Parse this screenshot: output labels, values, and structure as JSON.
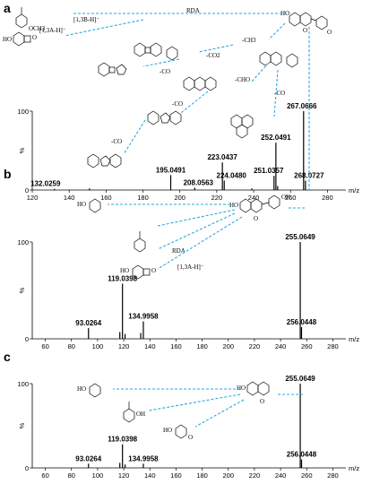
{
  "panels": {
    "a": "a",
    "b": "b",
    "c": "c"
  },
  "units": {
    "y_label": "%",
    "x_label": "m/z"
  },
  "annotations": {
    "rda": "RDA",
    "b_ion": "[1,3B-H]⁻",
    "a_ion": "[1,3A-H]⁻",
    "minus_ch3": "-CH3",
    "minus_co2": "-CO2",
    "minus_cho": "-CHO",
    "minus_co": "-CO",
    "rda_b": "RDA",
    "a_ion_b": "[1,3A-H]⁻"
  },
  "chart_data": [
    {
      "type": "bar",
      "panel": "a",
      "xlabel": "m/z",
      "ylabel": "%",
      "xlim": [
        120,
        290
      ],
      "ylim": [
        0,
        100
      ],
      "xticks": [
        120,
        140,
        160,
        180,
        200,
        220,
        240,
        260,
        280
      ],
      "yticks": [
        0,
        100
      ],
      "peaks": [
        {
          "x": 132.0259,
          "y": 1.5,
          "label": "132.0259"
        },
        {
          "x": 151.0,
          "y": 2,
          "label": ""
        },
        {
          "x": 195.0491,
          "y": 19,
          "label": "195.0491"
        },
        {
          "x": 208.0563,
          "y": 3,
          "label": "208.0563"
        },
        {
          "x": 223.0437,
          "y": 35,
          "label": "223.0437"
        },
        {
          "x": 224.048,
          "y": 12,
          "label": "224.0480"
        },
        {
          "x": 239.0,
          "y": 2,
          "label": ""
        },
        {
          "x": 251.0357,
          "y": 18,
          "label": "251.0357"
        },
        {
          "x": 252.0491,
          "y": 60,
          "label": "252.0491"
        },
        {
          "x": 253.0,
          "y": 5,
          "label": ""
        },
        {
          "x": 267.0666,
          "y": 100,
          "label": "267.0666"
        },
        {
          "x": 268.0727,
          "y": 12,
          "label": "268.0727"
        }
      ]
    },
    {
      "type": "bar",
      "panel": "b",
      "xlabel": "m/z",
      "ylabel": "%",
      "xlim": [
        50,
        290
      ],
      "ylim": [
        0,
        100
      ],
      "xticks": [
        60,
        80,
        100,
        120,
        140,
        160,
        180,
        200,
        220,
        240,
        260,
        280
      ],
      "yticks": [
        0,
        100
      ],
      "peaks": [
        {
          "x": 93.0264,
          "y": 11,
          "label": "93.0264"
        },
        {
          "x": 117.0,
          "y": 7,
          "label": ""
        },
        {
          "x": 119.0398,
          "y": 57,
          "label": "119.0398"
        },
        {
          "x": 121.0,
          "y": 5,
          "label": ""
        },
        {
          "x": 133.0,
          "y": 6,
          "label": ""
        },
        {
          "x": 134.9958,
          "y": 18,
          "label": "134.9958"
        },
        {
          "x": 255.0649,
          "y": 100,
          "label": "255.0649"
        },
        {
          "x": 256.0448,
          "y": 12,
          "label": "256.0448"
        }
      ]
    },
    {
      "type": "bar",
      "panel": "c",
      "xlabel": "m/z",
      "ylabel": "%",
      "xlim": [
        50,
        290
      ],
      "ylim": [
        0,
        100
      ],
      "xticks": [
        60,
        80,
        100,
        120,
        140,
        160,
        180,
        200,
        220,
        240,
        260,
        280
      ],
      "yticks": [
        0,
        100
      ],
      "peaks": [
        {
          "x": 93.0264,
          "y": 5,
          "label": "93.0264"
        },
        {
          "x": 117.0,
          "y": 6,
          "label": ""
        },
        {
          "x": 119.0398,
          "y": 28,
          "label": "119.0398"
        },
        {
          "x": 121.0,
          "y": 4,
          "label": ""
        },
        {
          "x": 134.9958,
          "y": 5,
          "label": "134.9958"
        },
        {
          "x": 255.0649,
          "y": 100,
          "label": "255.0649"
        },
        {
          "x": 256.0448,
          "y": 10,
          "label": "256.0448"
        }
      ]
    }
  ],
  "colors": {
    "arrow": "#2aa9e0",
    "bars": "#000000"
  }
}
